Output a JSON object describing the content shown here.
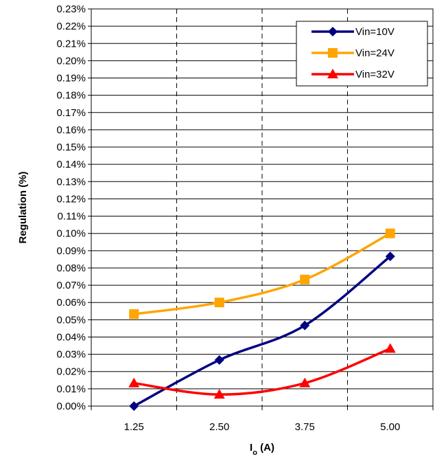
{
  "chart_data": {
    "type": "line",
    "xlabel_main": "I",
    "xlabel_sub": "o",
    "xlabel_rest": " (A)",
    "ylabel": "Regulation (%)",
    "categories": [
      "1.25",
      "2.50",
      "3.75",
      "5.00"
    ],
    "y_ticks": [
      "0.00%",
      "0.01%",
      "0.02%",
      "0.03%",
      "0.04%",
      "0.05%",
      "0.06%",
      "0.07%",
      "0.08%",
      "0.09%",
      "0.10%",
      "0.11%",
      "0.12%",
      "0.13%",
      "0.14%",
      "0.15%",
      "0.16%",
      "0.17%",
      "0.18%",
      "0.19%",
      "0.20%",
      "0.21%",
      "0.22%",
      "0.23%"
    ],
    "ylim": [
      0,
      0.23
    ],
    "y_unit": "%",
    "grid": true,
    "legend_position": "top-right",
    "series": [
      {
        "name": "Vin=10V",
        "color": "#000080",
        "marker": "diamond",
        "values": [
          0.0,
          0.0267,
          0.0467,
          0.0867
        ]
      },
      {
        "name": "Vin=24V",
        "color": "#FFA500",
        "marker": "square",
        "values": [
          0.0533,
          0.06,
          0.0733,
          0.1
        ]
      },
      {
        "name": "Vin=32V",
        "color": "#FF0000",
        "marker": "triangle",
        "values": [
          0.0133,
          0.0067,
          0.0133,
          0.0333
        ]
      }
    ]
  }
}
